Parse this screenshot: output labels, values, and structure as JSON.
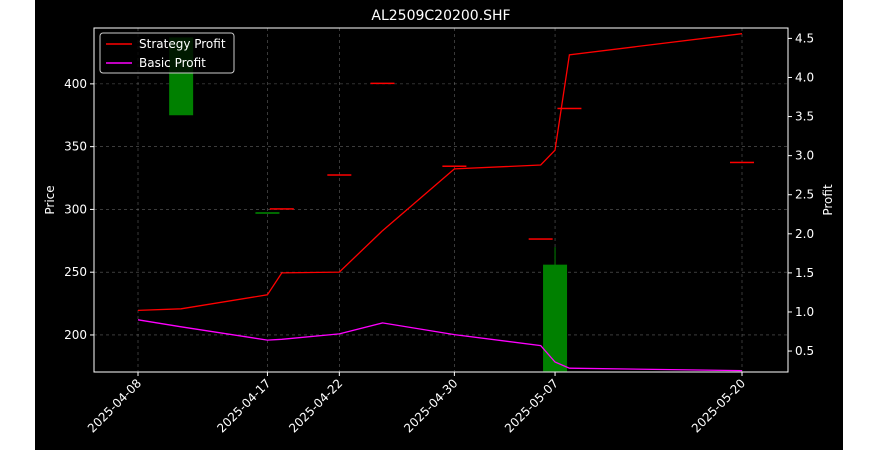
{
  "chart_data": {
    "type": "line",
    "title": "AL2509C20200.SHF",
    "xlabel": "",
    "ylabel": "Price",
    "y2label": "Profit",
    "ylim": [
      170.5,
      444.5
    ],
    "y2lim": [
      0.232,
      4.633
    ],
    "x_ticks": [
      "2025-04-08",
      "2025-04-17",
      "2025-04-22",
      "2025-04-30",
      "2025-05-07",
      "2025-05-20"
    ],
    "y_ticks": [
      200,
      250,
      300,
      350,
      400
    ],
    "y2_ticks": [
      0.5,
      1.0,
      1.5,
      2.0,
      2.5,
      3.0,
      3.5,
      4.0,
      4.5
    ],
    "grid": true,
    "legend_position": "top-left",
    "dates": [
      "2025-04-08",
      "2025-04-11",
      "2025-04-17",
      "2025-04-18",
      "2025-04-22",
      "2025-04-25",
      "2025-04-30",
      "2025-05-06",
      "2025-05-07",
      "2025-05-08",
      "2025-05-20"
    ],
    "candles": [
      {
        "date": "2025-04-11",
        "open": 375,
        "close": 437,
        "high": 437,
        "low": 375,
        "color": "#008000"
      },
      {
        "date": "2025-04-17",
        "open": 296.5,
        "close": 297.8,
        "high": 297.8,
        "low": 296.5,
        "color": "#008000"
      },
      {
        "date": "2025-04-18",
        "open": 301,
        "close": 301,
        "high": 301,
        "low": 301,
        "color": "#ff0000"
      },
      {
        "date": "2025-04-22",
        "open": 328,
        "close": 328,
        "high": 328,
        "low": 328,
        "color": "#ff0000"
      },
      {
        "date": "2025-04-25",
        "open": 401,
        "close": 401,
        "high": 401,
        "low": 401,
        "color": "#ff0000"
      },
      {
        "date": "2025-04-30",
        "open": 335,
        "close": 335,
        "high": 335,
        "low": 335,
        "color": "#ff0000"
      },
      {
        "date": "2025-05-06",
        "open": 277,
        "close": 276,
        "high": 277,
        "low": 276,
        "color": "#ff0000"
      },
      {
        "date": "2025-05-07",
        "open": 171,
        "close": 256,
        "high": 270,
        "low": 171,
        "color": "#008000"
      },
      {
        "date": "2025-05-08",
        "open": 381,
        "close": 381,
        "high": 381,
        "low": 381,
        "color": "#ff0000"
      },
      {
        "date": "2025-05-20",
        "open": 338,
        "close": 338,
        "high": 338,
        "low": 338,
        "color": "#ff0000"
      }
    ],
    "series": [
      {
        "name": "Strategy Profit",
        "color": "#ff0000",
        "axis": "right",
        "values": [
          1.02,
          1.04,
          1.22,
          1.5,
          1.51,
          2.04,
          2.83,
          2.88,
          3.07,
          4.29,
          4.56
        ]
      },
      {
        "name": "Basic Profit",
        "color": "#ff00ff",
        "axis": "right",
        "values": [
          0.9,
          0.81,
          0.64,
          0.65,
          0.72,
          0.86,
          0.71,
          0.57,
          0.36,
          0.28,
          0.25
        ]
      }
    ]
  },
  "colors": {
    "figure_bg": "#000000",
    "axes_bg": "#000000",
    "axis_color": "#ffffff",
    "text_color": "#ffffff",
    "grid_color": "#888888"
  }
}
